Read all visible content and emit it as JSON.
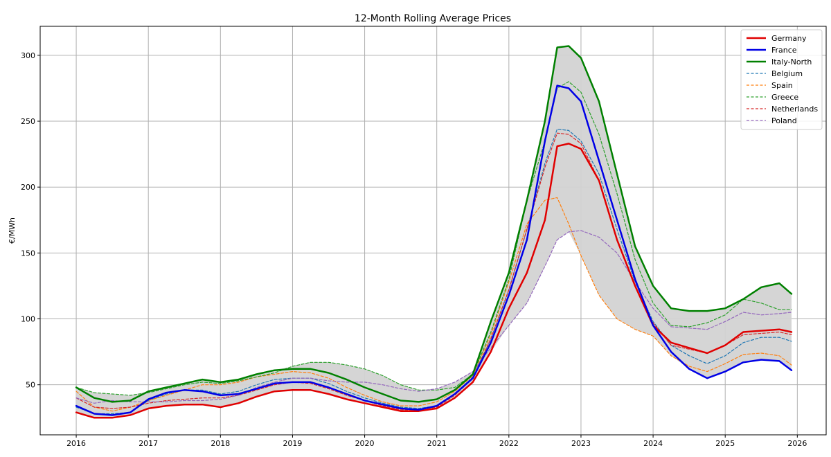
{
  "chart_data": {
    "type": "line",
    "title": "12-Month Rolling Average Prices",
    "xlabel": "",
    "ylabel": "€/MWh",
    "xlim": [
      2015.5,
      2026.4
    ],
    "ylim": [
      12,
      322
    ],
    "xticks": [
      2016,
      2017,
      2018,
      2019,
      2020,
      2021,
      2022,
      2023,
      2024,
      2025,
      2026
    ],
    "yticks": [
      50,
      100,
      150,
      200,
      250,
      300
    ],
    "grid": true,
    "legend_position": "top-right",
    "band": {
      "description": "min-max envelope across countries",
      "color": "#d3d3d3"
    },
    "x": [
      2016.0,
      2016.25,
      2016.5,
      2016.75,
      2017.0,
      2017.25,
      2017.5,
      2017.75,
      2018.0,
      2018.25,
      2018.5,
      2018.75,
      2019.0,
      2019.25,
      2019.5,
      2019.75,
      2020.0,
      2020.25,
      2020.5,
      2020.75,
      2021.0,
      2021.25,
      2021.5,
      2021.75,
      2022.0,
      2022.25,
      2022.5,
      2022.67,
      2022.83,
      2023.0,
      2023.25,
      2023.5,
      2023.75,
      2024.0,
      2024.25,
      2024.5,
      2024.75,
      2025.0,
      2025.25,
      2025.5,
      2025.75,
      2025.92
    ],
    "series": [
      {
        "name": "Germany",
        "color": "#e00000",
        "style": "solid",
        "width": 2.5,
        "values": [
          29,
          25,
          25,
          27,
          32,
          34,
          35,
          35,
          33,
          36,
          41,
          45,
          46,
          46,
          43,
          39,
          36,
          33,
          30,
          30,
          32,
          40,
          52,
          75,
          108,
          135,
          175,
          231,
          233,
          229,
          205,
          160,
          125,
          95,
          82,
          78,
          74,
          80,
          90,
          91,
          92,
          90
        ]
      },
      {
        "name": "France",
        "color": "#0000e6",
        "style": "solid",
        "width": 2.5,
        "values": [
          34,
          28,
          27,
          29,
          39,
          44,
          46,
          45,
          42,
          43,
          47,
          51,
          52,
          52,
          48,
          43,
          38,
          35,
          32,
          31,
          34,
          43,
          55,
          82,
          118,
          160,
          235,
          277,
          275,
          265,
          220,
          175,
          130,
          95,
          75,
          62,
          55,
          60,
          67,
          69,
          68,
          61
        ]
      },
      {
        "name": "Italy-North",
        "color": "#008000",
        "style": "solid",
        "width": 2.5,
        "values": [
          48,
          40,
          37,
          38,
          45,
          48,
          51,
          54,
          52,
          54,
          58,
          61,
          62,
          62,
          59,
          54,
          48,
          43,
          38,
          37,
          39,
          46,
          58,
          98,
          135,
          190,
          250,
          306,
          307,
          298,
          265,
          210,
          155,
          125,
          108,
          106,
          106,
          108,
          115,
          124,
          127,
          119
        ]
      },
      {
        "name": "Belgium",
        "color": "#1f77b4",
        "style": "dashed",
        "width": 1.2,
        "values": [
          33,
          28,
          28,
          29,
          38,
          43,
          46,
          46,
          43,
          45,
          50,
          54,
          55,
          55,
          51,
          45,
          40,
          36,
          33,
          32,
          34,
          43,
          56,
          85,
          122,
          168,
          218,
          244,
          243,
          235,
          210,
          168,
          128,
          98,
          80,
          72,
          66,
          72,
          82,
          86,
          86,
          83
        ]
      },
      {
        "name": "Spain",
        "color": "#ff7f0e",
        "style": "dashed",
        "width": 1.2,
        "values": [
          45,
          33,
          30,
          33,
          38,
          42,
          46,
          50,
          50,
          52,
          56,
          58,
          60,
          59,
          55,
          48,
          42,
          37,
          34,
          34,
          37,
          45,
          57,
          88,
          128,
          172,
          190,
          192,
          172,
          148,
          118,
          100,
          92,
          87,
          72,
          64,
          60,
          66,
          73,
          74,
          72,
          65
        ]
      },
      {
        "name": "Greece",
        "color": "#2ca02c",
        "style": "dashed",
        "width": 1.2,
        "values": [
          48,
          44,
          43,
          42,
          44,
          47,
          50,
          52,
          51,
          53,
          56,
          59,
          64,
          67,
          67,
          65,
          62,
          57,
          50,
          46,
          46,
          48,
          58,
          90,
          130,
          190,
          235,
          275,
          280,
          272,
          240,
          195,
          145,
          112,
          95,
          94,
          97,
          103,
          115,
          112,
          107,
          107
        ]
      },
      {
        "name": "Netherlands",
        "color": "#d62728",
        "style": "dashed",
        "width": 1.2,
        "values": [
          40,
          33,
          32,
          33,
          36,
          38,
          39,
          40,
          40,
          42,
          46,
          50,
          52,
          51,
          47,
          42,
          38,
          34,
          31,
          31,
          33,
          42,
          55,
          85,
          122,
          168,
          215,
          241,
          240,
          233,
          205,
          160,
          125,
          97,
          80,
          77,
          74,
          80,
          88,
          89,
          90,
          88
        ]
      },
      {
        "name": "Poland",
        "color": "#9467bd",
        "style": "dashed",
        "width": 1.2,
        "values": [
          40,
          36,
          38,
          37,
          37,
          37,
          38,
          38,
          39,
          42,
          48,
          52,
          55,
          55,
          53,
          52,
          52,
          50,
          47,
          45,
          47,
          52,
          60,
          78,
          95,
          112,
          140,
          160,
          166,
          167,
          162,
          150,
          128,
          108,
          94,
          93,
          92,
          98,
          105,
          103,
          104,
          105
        ]
      }
    ]
  }
}
